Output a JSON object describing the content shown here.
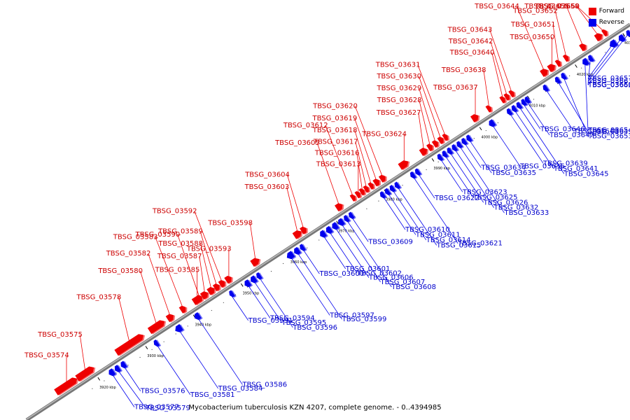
{
  "caption": "Mycobacterium tuberculosis KZN 4207, complete genome. - 0..4394985",
  "legend": {
    "forward": {
      "label": "Forward",
      "color": "#ee0000"
    },
    "reverse": {
      "label": "Reverse",
      "color": "#0000ee"
    }
  },
  "axis": {
    "tick_labels": [
      "3920 kbp",
      "3930 kbp",
      "3940 kbp",
      "3950 kbp",
      "3960 kbp",
      "3970 kbp",
      "3980 kbp",
      "3990 kbp",
      "4000 kbp",
      "4010 kbp",
      "4020 kbp",
      "4030 kbp"
    ]
  },
  "forward_genes": [
    {
      "name": "TBSG_03574",
      "t": 0.055,
      "len": 0.035
    },
    {
      "name": "TBSG_03575",
      "t": 0.09,
      "len": 0.028
    },
    {
      "name": "TBSG_03578",
      "t": 0.155,
      "len": 0.045
    },
    {
      "name": "TBSG_03580",
      "t": 0.21,
      "len": 0.025
    },
    {
      "name": "TBSG_03582",
      "t": 0.24,
      "len": 0.01
    },
    {
      "name": "TBSG_03583",
      "t": 0.262,
      "len": 0.008
    },
    {
      "name": "TBSG_03585",
      "t": 0.283,
      "len": 0.012
    },
    {
      "name": "TBSG_03587",
      "t": 0.297,
      "len": 0.01
    },
    {
      "name": "TBSG_03588",
      "t": 0.308,
      "len": 0.01
    },
    {
      "name": "TBSG_03589",
      "t": 0.318,
      "len": 0.008
    },
    {
      "name": "TBSG_03590",
      "t": 0.29,
      "len": 0.007
    },
    {
      "name": "TBSG_03592",
      "t": 0.327,
      "len": 0.008
    },
    {
      "name": "TBSG_03593",
      "t": 0.337,
      "len": 0.009
    },
    {
      "name": "TBSG_03598",
      "t": 0.38,
      "len": 0.012
    },
    {
      "name": "TBSG_03603",
      "t": 0.45,
      "len": 0.012
    },
    {
      "name": "TBSG_03604",
      "t": 0.462,
      "len": 0.008
    },
    {
      "name": "TBSG_03605",
      "t": 0.52,
      "len": 0.01
    },
    {
      "name": "TBSG_03612",
      "t": 0.545,
      "len": 0.006
    },
    {
      "name": "TBSG_03613",
      "t": 0.553,
      "len": 0.006
    },
    {
      "name": "TBSG_03616",
      "t": 0.56,
      "len": 0.006
    },
    {
      "name": "TBSG_03617",
      "t": 0.567,
      "len": 0.006
    },
    {
      "name": "TBSG_03618",
      "t": 0.575,
      "len": 0.006
    },
    {
      "name": "TBSG_03619",
      "t": 0.583,
      "len": 0.008
    },
    {
      "name": "TBSG_03620",
      "t": 0.593,
      "len": 0.008
    },
    {
      "name": "TBSG_03624",
      "t": 0.625,
      "len": 0.014
    },
    {
      "name": "TBSG_03627",
      "t": 0.66,
      "len": 0.01
    },
    {
      "name": "TBSG_03628",
      "t": 0.672,
      "len": 0.007
    },
    {
      "name": "TBSG_03629",
      "t": 0.681,
      "len": 0.007
    },
    {
      "name": "TBSG_03630",
      "t": 0.69,
      "len": 0.007
    },
    {
      "name": "TBSG_03631",
      "t": 0.698,
      "len": 0.006
    },
    {
      "name": "TBSG_03637",
      "t": 0.745,
      "len": 0.01
    },
    {
      "name": "TBSG_03638",
      "t": 0.77,
      "len": 0.006
    },
    {
      "name": "TBSG_03640",
      "t": 0.793,
      "len": 0.006
    },
    {
      "name": "TBSG_03642",
      "t": 0.8,
      "len": 0.006
    },
    {
      "name": "TBSG_03643",
      "t": 0.808,
      "len": 0.006
    },
    {
      "name": "TBSG_03644",
      "t": 0.86,
      "len": 0.01
    },
    {
      "name": "TBSG_03650",
      "t": 0.872,
      "len": 0.01
    },
    {
      "name": "TBSG_03651",
      "t": 0.885,
      "len": 0.006
    },
    {
      "name": "TBSG_03652",
      "t": 0.898,
      "len": 0.006
    },
    {
      "name": "TBSG_03655",
      "t": 0.925,
      "len": 0.008
    },
    {
      "name": "TBSG_03658",
      "t": 0.95,
      "len": 0.01
    },
    {
      "name": "TBSG_03660",
      "t": 0.962,
      "len": 0.006
    }
  ],
  "reverse_genes": [
    {
      "name": "TBSG_03576",
      "t": 0.15,
      "len": 0.007
    },
    {
      "name": "TBSG_03577",
      "t": 0.13,
      "len": 0.008
    },
    {
      "name": "TBSG_03579",
      "t": 0.14,
      "len": 0.007
    },
    {
      "name": "TBSG_03581",
      "t": 0.205,
      "len": 0.006
    },
    {
      "name": "TBSG_03584",
      "t": 0.24,
      "len": 0.01
    },
    {
      "name": "TBSG_03586",
      "t": 0.272,
      "len": 0.008
    },
    {
      "name": "TBSG_03591",
      "t": 0.33,
      "len": 0.004
    },
    {
      "name": "TBSG_03594",
      "t": 0.355,
      "len": 0.008
    },
    {
      "name": "TBSG_03595",
      "t": 0.365,
      "len": 0.008
    },
    {
      "name": "TBSG_03596",
      "t": 0.375,
      "len": 0.006
    },
    {
      "name": "TBSG_03597",
      "t": 0.425,
      "len": 0.01
    },
    {
      "name": "TBSG_03599",
      "t": 0.437,
      "len": 0.008
    },
    {
      "name": "TBSG_03600",
      "t": 0.447,
      "len": 0.006
    },
    {
      "name": "TBSG_03601",
      "t": 0.48,
      "len": 0.008
    },
    {
      "name": "TBSG_03602",
      "t": 0.49,
      "len": 0.008
    },
    {
      "name": "TBSG_03606",
      "t": 0.5,
      "len": 0.008
    },
    {
      "name": "TBSG_03607",
      "t": 0.51,
      "len": 0.008
    },
    {
      "name": "TBSG_03608",
      "t": 0.52,
      "len": 0.006
    },
    {
      "name": "TBSG_03609",
      "t": 0.528,
      "len": 0.006
    },
    {
      "name": "TBSG_03610",
      "t": 0.58,
      "len": 0.006
    },
    {
      "name": "TBSG_03611",
      "t": 0.588,
      "len": 0.006
    },
    {
      "name": "TBSG_03614",
      "t": 0.596,
      "len": 0.006
    },
    {
      "name": "TBSG_03615",
      "t": 0.604,
      "len": 0.006
    },
    {
      "name": "TBSG_03621",
      "t": 0.63,
      "len": 0.006
    },
    {
      "name": "TBSG_03622",
      "t": 0.638,
      "len": 0.006
    },
    {
      "name": "TBSG_03623",
      "t": 0.675,
      "len": 0.006
    },
    {
      "name": "TBSG_03625",
      "t": 0.683,
      "len": 0.006
    },
    {
      "name": "TBSG_03626",
      "t": 0.691,
      "len": 0.006
    },
    {
      "name": "TBSG_03632",
      "t": 0.699,
      "len": 0.006
    },
    {
      "name": "TBSG_03633",
      "t": 0.707,
      "len": 0.006
    },
    {
      "name": "TBSG_03634",
      "t": 0.715,
      "len": 0.006
    },
    {
      "name": "TBSG_03635",
      "t": 0.723,
      "len": 0.006
    },
    {
      "name": "TBSG_03636",
      "t": 0.76,
      "len": 0.008
    },
    {
      "name": "TBSG_03639",
      "t": 0.79,
      "len": 0.006
    },
    {
      "name": "TBSG_03641",
      "t": 0.798,
      "len": 0.006
    },
    {
      "name": "TBSG_03645",
      "t": 0.806,
      "len": 0.006
    },
    {
      "name": "TBSG_03646",
      "t": 0.814,
      "len": 0.004
    },
    {
      "name": "TBSG_03647",
      "t": 0.82,
      "len": 0.004
    },
    {
      "name": "TBSG_03648",
      "t": 0.85,
      "len": 0.006
    },
    {
      "name": "TBSG_03649",
      "t": 0.87,
      "len": 0.006
    },
    {
      "name": "TBSG_03653",
      "t": 0.88,
      "len": 0.006
    },
    {
      "name": "TBSG_03654",
      "t": 0.915,
      "len": 0.008
    },
    {
      "name": "TBSG_03656",
      "t": 0.925,
      "len": 0.006
    },
    {
      "name": "TBSG_03657",
      "t": 0.96,
      "len": 0.01
    },
    {
      "name": "TBSG_03661",
      "t": 0.975,
      "len": 0.008
    },
    {
      "name": "TBSG_03662",
      "t": 0.988,
      "len": 0.006
    }
  ]
}
